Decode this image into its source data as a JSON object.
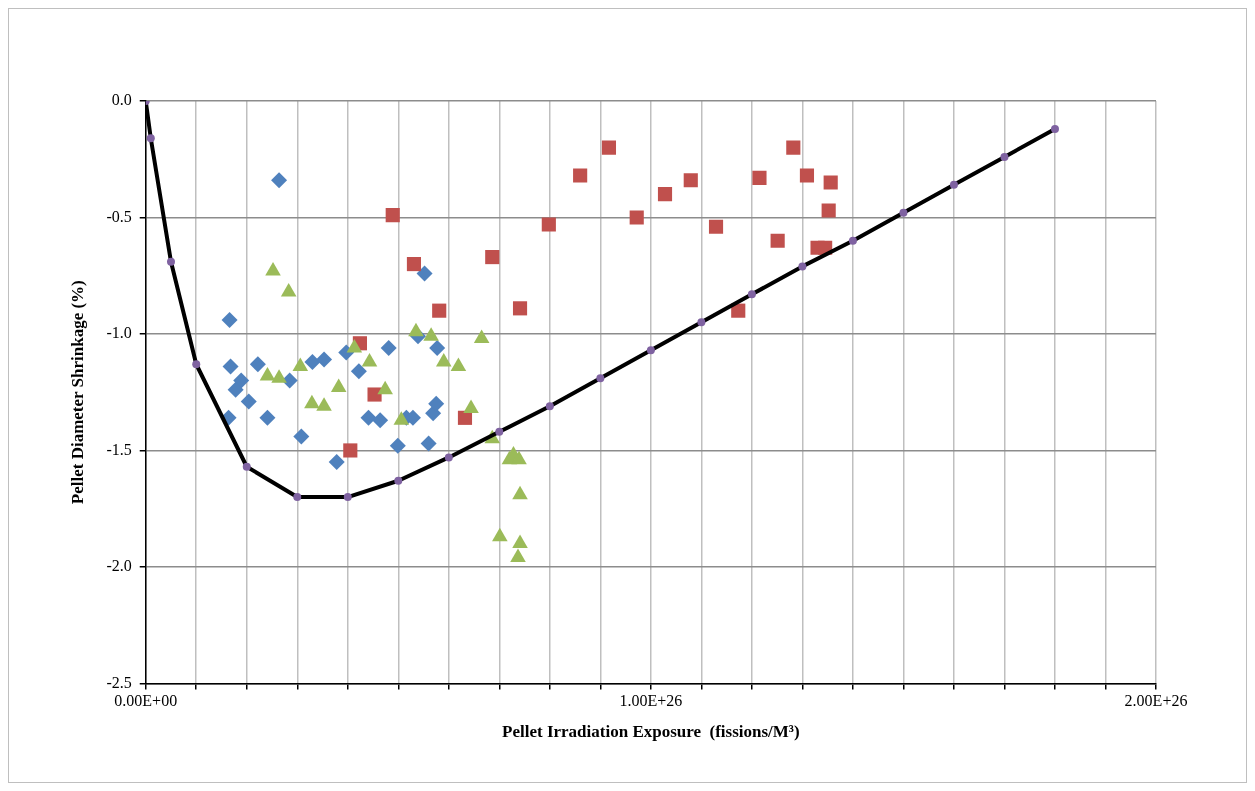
{
  "chart_data": {
    "type": "scatter",
    "xlabel": "Pellet Irradiation Exposure  (fissions/M³)",
    "ylabel": "Pellet Diameter Shrinkage (%)",
    "xlim": [
      0,
      2e+26
    ],
    "xticks": [
      {
        "value": 0,
        "label": "0.00E+00"
      },
      {
        "value": 1e+25,
        "label": null
      },
      {
        "value": 2e+25,
        "label": null
      },
      {
        "value": 3e+25,
        "label": null
      },
      {
        "value": 4e+25,
        "label": null
      },
      {
        "value": 5e+25,
        "label": null
      },
      {
        "value": 6e+25,
        "label": null
      },
      {
        "value": 7e+25,
        "label": null
      },
      {
        "value": 8e+25,
        "label": null
      },
      {
        "value": 9e+25,
        "label": null
      },
      {
        "value": 1e+26,
        "label": "1.00E+26"
      },
      {
        "value": 1.1e+26,
        "label": null
      },
      {
        "value": 1.2e+26,
        "label": null
      },
      {
        "value": 1.3e+26,
        "label": null
      },
      {
        "value": 1.4e+26,
        "label": null
      },
      {
        "value": 1.5e+26,
        "label": null
      },
      {
        "value": 1.6e+26,
        "label": null
      },
      {
        "value": 1.7e+26,
        "label": null
      },
      {
        "value": 1.8e+26,
        "label": null
      },
      {
        "value": 1.9e+26,
        "label": null
      },
      {
        "value": 2e+26,
        "label": "2.00E+26"
      }
    ],
    "ylim": [
      -2.5,
      0
    ],
    "yticks": [
      {
        "value": -2.5,
        "label": "-2.5"
      },
      {
        "value": -2,
        "label": "-2.0"
      },
      {
        "value": -1.5,
        "label": "-1.5"
      },
      {
        "value": -1,
        "label": "-1.0"
      },
      {
        "value": -0.5,
        "label": "-0.5"
      },
      {
        "value": 0,
        "label": "0.0"
      }
    ],
    "grid": true,
    "legend": false,
    "series": [
      {
        "type": "scatter",
        "marker": "diamond",
        "color": "#4f81bd",
        "x": [
          2.64e+25,
          1.66e+25,
          1.68e+25,
          2.22e+25,
          1.89e+25,
          1.78e+25,
          2.04e+25,
          1.64e+25,
          2.41e+25,
          2.85e+25,
          3.08e+25,
          3.3e+25,
          3.53e+25,
          3.78e+25,
          3.97e+25,
          4.22e+25,
          4.41e+25,
          4.64e+25,
          4.81e+25,
          4.99e+25,
          5.16e+25,
          5.29e+25,
          5.39e+25,
          5.52e+25,
          5.6e+25,
          5.69e+25,
          5.75e+25,
          5.77e+25
        ],
        "values": [
          -0.34,
          -0.94,
          -1.14,
          -1.13,
          -1.2,
          -1.24,
          -1.29,
          -1.36,
          -1.36,
          -1.2,
          -1.44,
          -1.12,
          -1.11,
          -1.55,
          -1.08,
          -1.16,
          -1.36,
          -1.37,
          -1.06,
          -1.48,
          -1.36,
          -1.36,
          -1.01,
          -0.74,
          -1.47,
          -1.34,
          -1.3,
          -1.06
        ]
      },
      {
        "type": "scatter",
        "marker": "square",
        "color": "#c0504d",
        "x": [
          4.05e+25,
          4.24e+25,
          4.53e+25,
          4.89e+25,
          5.31e+25,
          5.81e+25,
          6.32e+25,
          6.86e+25,
          7.41e+25,
          7.98e+25,
          8.6e+25,
          9.17e+25,
          9.72e+25,
          1.028e+26,
          1.079e+26,
          1.129e+26,
          1.173e+26,
          1.215e+26,
          1.251e+26,
          1.282e+26,
          1.309e+26,
          1.33e+26,
          1.345e+26,
          1.352e+26,
          1.356e+26
        ],
        "values": [
          -1.5,
          -1.04,
          -1.26,
          -0.49,
          -0.7,
          -0.9,
          -1.36,
          -0.67,
          -0.89,
          -0.53,
          -0.32,
          -0.2,
          -0.5,
          -0.4,
          -0.34,
          -0.54,
          -0.9,
          -0.33,
          -0.6,
          -0.2,
          -0.32,
          -0.63,
          -0.63,
          -0.47,
          -0.35
        ]
      },
      {
        "type": "scatter",
        "marker": "triangle",
        "color": "#9bbb59",
        "x": [
          2.52e+25,
          2.83e+25,
          2.41e+25,
          2.64e+25,
          3.06e+25,
          3.29e+25,
          3.53e+25,
          3.82e+25,
          4.13e+25,
          4.43e+25,
          4.74e+25,
          5.06e+25,
          5.35e+25,
          5.65e+25,
          5.9e+25,
          6.19e+25,
          6.44e+25,
          6.65e+25,
          6.86e+25,
          7.01e+25,
          7.2e+25,
          7.28e+25,
          7.39e+25,
          7.41e+25,
          7.41e+25,
          7.37e+25
        ],
        "values": [
          -0.73,
          -0.82,
          -1.18,
          -1.19,
          -1.14,
          -1.3,
          -1.31,
          -1.23,
          -1.06,
          -1.12,
          -1.24,
          -1.37,
          -0.99,
          -1.01,
          -1.12,
          -1.14,
          -1.32,
          -1.02,
          -1.45,
          -1.87,
          -1.54,
          -1.52,
          -1.54,
          -1.69,
          -1.9,
          -1.96
        ]
      },
      {
        "type": "line",
        "marker": "circle",
        "color": "#000000",
        "colors": [
          "#7f62a1",
          "#7f62a1",
          "#7f62a1",
          "#7f62a1",
          "#7f62a1",
          "#7f62a1",
          "#7f62a1",
          "#7f62a1",
          "#7f62a1",
          "#7f62a1",
          "#7f62a1",
          "#7f62a1",
          "#7f62a1",
          "#7f62a1",
          "#7f62a1",
          "#7f62a1",
          "#7f62a1",
          "#7f62a1",
          "#7f62a1",
          "#7f62a1",
          "#7f62a1"
        ],
        "x": [
          0,
          1e+24,
          5e+24,
          1e+25,
          2e+25,
          3e+25,
          4e+25,
          5e+25,
          6e+25,
          7e+25,
          8e+25,
          9e+25,
          1e+26,
          1.1e+26,
          1.2e+26,
          1.3e+26,
          1.4e+26,
          1.5e+26,
          1.6e+26,
          1.7e+26,
          1.8e+26
        ],
        "values": [
          0,
          -0.16,
          -0.69,
          -1.13,
          -1.57,
          -1.7,
          -1.7,
          -1.63,
          -1.53,
          -1.42,
          -1.31,
          -1.19,
          -1.07,
          -0.95,
          -0.83,
          -0.71,
          -0.6,
          -0.48,
          -0.36,
          -0.24,
          -0.12
        ]
      }
    ]
  }
}
